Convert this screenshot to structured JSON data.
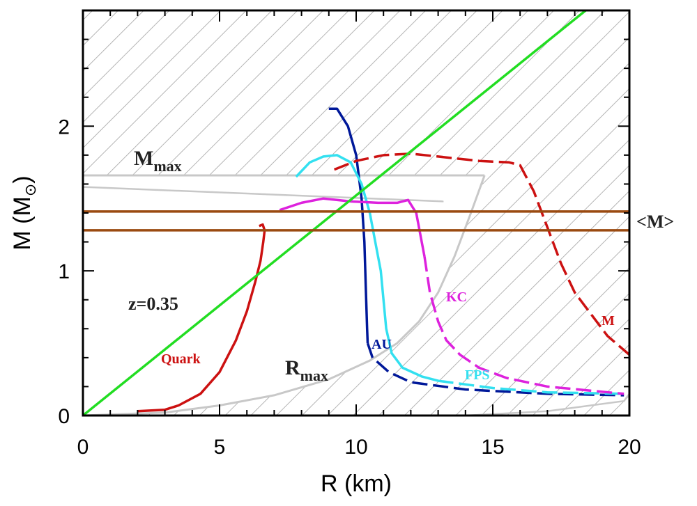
{
  "chart_data": {
    "type": "line",
    "xlabel": "R (km)",
    "ylabel_parts": {
      "text": "M (M",
      "sub": "⊙",
      "close": ")"
    },
    "xlim": [
      0,
      20
    ],
    "ylim": [
      0,
      2.8
    ],
    "x_ticks": [
      0,
      5,
      10,
      15,
      20
    ],
    "y_ticks": [
      0,
      1,
      2
    ],
    "x_minor_step": 1,
    "y_minor_step": 0.2,
    "grid": false,
    "colors": {
      "gr": "#22dd22",
      "quark": "#cc1111",
      "au": "#001899",
      "fps": "#33e0f0",
      "kc": "#dd22dd",
      "m": "#cc1111",
      "mean_mass": "#9a4a10",
      "constraint": "#c8c8c8",
      "hatch": "#b4b4b4",
      "text_dark": "#222222"
    },
    "annotations": {
      "mmax": {
        "main": "M",
        "sub": "max"
      },
      "rmax": {
        "main": "R",
        "sub": "max"
      },
      "z": "z=0.35",
      "mean_mass": "<M>",
      "quark": "Quark",
      "au": "AU",
      "fps": "FPS",
      "kc": "KC",
      "m": "M"
    },
    "series": [
      {
        "name": "Quark",
        "style": "solid",
        "color_key": "quark",
        "x": [
          2.0,
          3.0,
          3.5,
          4.3,
          5.0,
          5.6,
          6.0,
          6.3,
          6.5,
          6.6,
          6.65,
          6.58,
          6.45
        ],
        "y": [
          0.03,
          0.04,
          0.07,
          0.15,
          0.3,
          0.52,
          0.72,
          0.92,
          1.07,
          1.2,
          1.28,
          1.32,
          1.31
        ]
      },
      {
        "name": "AU",
        "style": "solid",
        "color_key": "au",
        "x": [
          9.0,
          9.3,
          9.7,
          10.0,
          10.2,
          10.3,
          10.35,
          10.4,
          10.42
        ],
        "y": [
          2.12,
          2.12,
          2.0,
          1.8,
          1.5,
          1.2,
          0.9,
          0.6,
          0.5
        ]
      },
      {
        "name": "AU",
        "style": "dashed",
        "color_key": "au",
        "x": [
          10.42,
          10.6,
          11.2,
          12.0,
          14.0,
          17.0,
          19.8
        ],
        "y": [
          0.5,
          0.4,
          0.3,
          0.23,
          0.18,
          0.15,
          0.14
        ]
      },
      {
        "name": "FPS",
        "style": "solid",
        "color_key": "fps",
        "x": [
          7.8,
          8.3,
          8.8,
          9.3,
          9.8,
          10.2,
          10.5,
          10.7,
          10.9,
          11.0,
          11.1,
          11.3,
          11.7,
          12.4,
          13.0
        ],
        "y": [
          1.65,
          1.75,
          1.79,
          1.8,
          1.75,
          1.6,
          1.4,
          1.2,
          1.0,
          0.8,
          0.6,
          0.43,
          0.33,
          0.27,
          0.24
        ]
      },
      {
        "name": "FPS",
        "style": "dashed",
        "color_key": "fps",
        "x": [
          13.0,
          15.0,
          17.0,
          19.8
        ],
        "y": [
          0.24,
          0.19,
          0.16,
          0.15
        ]
      },
      {
        "name": "KC",
        "style": "solid",
        "color_key": "kc",
        "x": [
          7.2,
          8.0,
          8.8,
          9.8,
          10.8,
          11.5,
          11.9,
          12.2,
          12.5
        ],
        "y": [
          1.42,
          1.47,
          1.5,
          1.48,
          1.47,
          1.47,
          1.49,
          1.4,
          1.1
        ]
      },
      {
        "name": "KC",
        "style": "dashed",
        "color_key": "kc",
        "x": [
          12.5,
          12.7,
          13.0,
          13.3,
          13.8,
          14.5,
          15.5,
          17.0,
          19.8
        ],
        "y": [
          1.1,
          0.85,
          0.65,
          0.52,
          0.42,
          0.33,
          0.26,
          0.2,
          0.15
        ]
      },
      {
        "name": "M",
        "style": "dashed",
        "color_key": "m",
        "x": [
          9.2,
          10.0,
          11.0,
          12.0,
          13.0,
          14.5,
          15.6,
          16.0,
          16.5,
          17.0,
          17.5,
          18.0,
          18.6,
          19.2,
          20.0
        ],
        "y": [
          1.7,
          1.76,
          1.8,
          1.81,
          1.79,
          1.76,
          1.75,
          1.73,
          1.55,
          1.3,
          1.05,
          0.85,
          0.7,
          0.55,
          0.42
        ]
      },
      {
        "name": "z=0.35",
        "style": "solid",
        "color_key": "gr",
        "x": [
          0.0,
          18.4
        ],
        "y": [
          0.0,
          2.8
        ]
      },
      {
        "name": "<M>",
        "style": "solid",
        "color_key": "mean_mass",
        "x": [
          0.0,
          20.0
        ],
        "y": [
          1.41,
          1.41
        ]
      },
      {
        "name": "<M>",
        "style": "solid",
        "color_key": "mean_mass",
        "x": [
          0.0,
          20.0
        ],
        "y": [
          1.28,
          1.28
        ]
      }
    ],
    "constraints": {
      "mmax_outline": {
        "x": [
          0.0,
          14.7,
          14.3,
          0.0
        ],
        "y": [
          1.66,
          1.66,
          1.48,
          1.58
        ]
      },
      "rmax_curve": {
        "x": [
          0.0,
          3.0,
          5.0,
          7.0,
          9.0,
          10.5,
          11.5,
          12.3,
          13.0,
          13.6,
          14.2,
          14.7
        ],
        "y": [
          0.0,
          0.02,
          0.07,
          0.14,
          0.25,
          0.38,
          0.5,
          0.65,
          0.85,
          1.1,
          1.4,
          1.66
        ]
      },
      "bottom_edge": {
        "x": [
          14.0,
          17.0,
          19.8,
          20.0
        ],
        "y": [
          0.0,
          0.03,
          0.1,
          0.15
        ]
      }
    }
  }
}
